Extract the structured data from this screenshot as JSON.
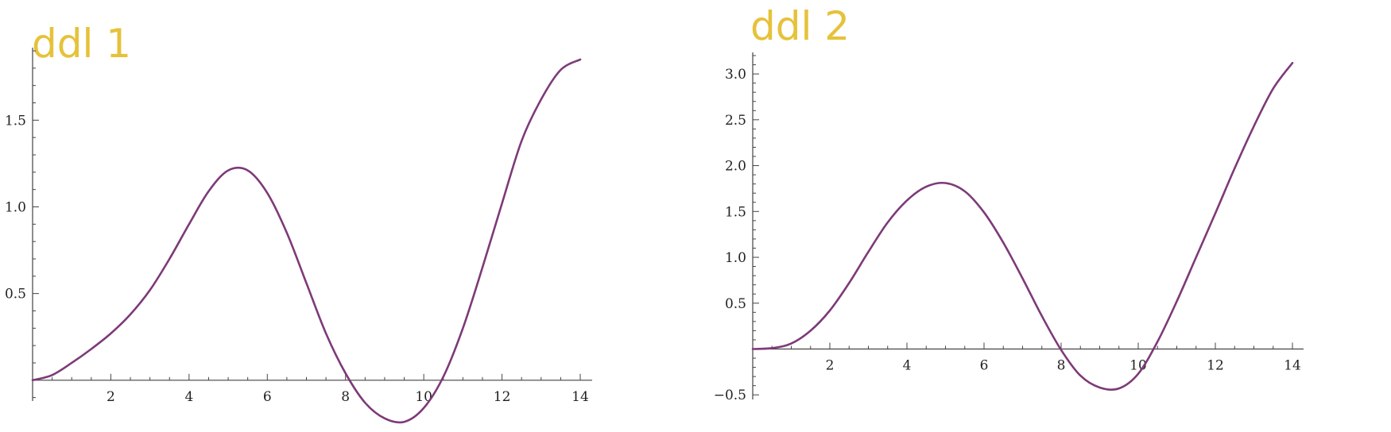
{
  "chart_data": [
    {
      "type": "line",
      "title": "ddl 1",
      "title_color": "#e6c23a",
      "line_color": "#7d3a78",
      "xlim": [
        0,
        14
      ],
      "ylim": [
        -0.12,
        1.9
      ],
      "xticks": [
        2,
        4,
        6,
        8,
        10,
        12,
        14
      ],
      "xtick_labels": [
        "2",
        "4",
        "6",
        "8",
        "10",
        "12",
        "14"
      ],
      "yticks": [
        0.5,
        1.0,
        1.5
      ],
      "ytick_labels": [
        "0.5",
        "1.0",
        "1.5"
      ],
      "grid": false,
      "series": [
        {
          "x": [
            0,
            0.5,
            1,
            1.5,
            2,
            2.5,
            3,
            3.5,
            4,
            4.5,
            5,
            5.5,
            6,
            6.5,
            7,
            7.5,
            8,
            8.5,
            9,
            9.5,
            10,
            10.5,
            11,
            11.5,
            12,
            12.5,
            13,
            13.5,
            14
          ],
          "y": [
            0,
            0.03,
            0.1,
            0.18,
            0.27,
            0.38,
            0.52,
            0.7,
            0.9,
            1.09,
            1.21,
            1.21,
            1.08,
            0.85,
            0.56,
            0.27,
            0.04,
            -0.13,
            -0.22,
            -0.24,
            -0.16,
            0.02,
            0.3,
            0.65,
            1.02,
            1.38,
            1.62,
            1.79,
            1.85
          ]
        }
      ]
    },
    {
      "type": "line",
      "title": "ddl 2",
      "title_color": "#e6c23a",
      "line_color": "#7d3a78",
      "xlim": [
        0,
        14
      ],
      "ylim": [
        -0.55,
        3.2
      ],
      "xticks": [
        2,
        4,
        6,
        8,
        10,
        12,
        14
      ],
      "xtick_labels": [
        "2",
        "4",
        "6",
        "8",
        "10",
        "12",
        "14"
      ],
      "yticks": [
        -0.5,
        0.5,
        1.0,
        1.5,
        2.0,
        2.5,
        3.0
      ],
      "ytick_labels": [
        "−0.5",
        "0.5",
        "1.0",
        "1.5",
        "2.0",
        "2.5",
        "3.0"
      ],
      "grid": false,
      "series": [
        {
          "x": [
            0,
            0.5,
            1,
            1.5,
            2,
            2.5,
            3,
            3.5,
            4,
            4.5,
            5,
            5.5,
            6,
            6.5,
            7,
            7.5,
            8,
            8.5,
            9,
            9.5,
            10,
            10.5,
            11,
            11.5,
            12,
            12.5,
            13,
            13.5,
            14
          ],
          "y": [
            0,
            0.01,
            0.06,
            0.2,
            0.42,
            0.72,
            1.06,
            1.38,
            1.62,
            1.77,
            1.81,
            1.72,
            1.49,
            1.16,
            0.77,
            0.36,
            -0.01,
            -0.29,
            -0.42,
            -0.43,
            -0.27,
            0.08,
            0.52,
            1.0,
            1.48,
            1.97,
            2.43,
            2.84,
            3.12
          ]
        }
      ]
    }
  ]
}
